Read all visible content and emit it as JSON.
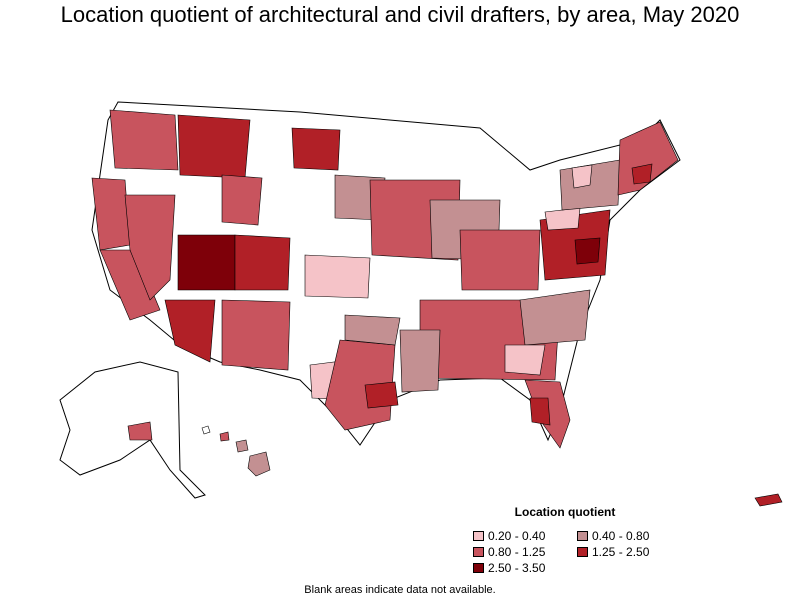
{
  "title": "Location quotient of architectural and civil drafters, by area, May 2020",
  "legend": {
    "title": "Location quotient",
    "items": [
      {
        "label": "0.20 - 0.40",
        "color": "#f5c3c8"
      },
      {
        "label": "0.40 - 0.80",
        "color": "#c39092"
      },
      {
        "label": "0.80 - 1.25",
        "color": "#c8545e"
      },
      {
        "label": "1.25 - 2.50",
        "color": "#b12027"
      },
      {
        "label": "2.50 - 3.50",
        "color": "#7e0009"
      }
    ]
  },
  "note": "Blank areas indicate data not available."
}
